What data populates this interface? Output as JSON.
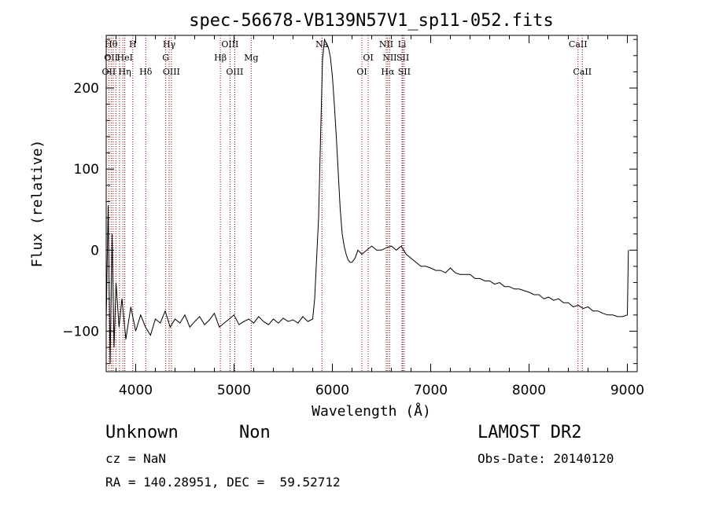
{
  "chart_data": {
    "type": "line",
    "title": "spec-56678-VB139N57V1_sp11-052.fits",
    "xlabel": "Wavelength (Å)",
    "ylabel": "Flux (relative)",
    "xlim": [
      3700,
      9100
    ],
    "ylim": [
      -150,
      265
    ],
    "x_ticks": [
      4000,
      5000,
      6000,
      7000,
      8000,
      9000
    ],
    "y_ticks": [
      -100,
      0,
      100,
      200
    ],
    "grid": false,
    "legend": "none",
    "line_color": "#000000",
    "marker_color": "#8b0000",
    "series": [
      {
        "x": [
          3700,
          3720,
          3740,
          3760,
          3780,
          3800,
          3830,
          3860,
          3900,
          3950,
          4000,
          4050,
          4100,
          4150,
          4200,
          4250,
          4300,
          4350,
          4400,
          4450,
          4500,
          4550,
          4600,
          4650,
          4700,
          4750,
          4800,
          4850,
          4900,
          4950,
          5000,
          5050,
          5100,
          5150,
          5200,
          5250,
          5300,
          5350,
          5400,
          5450,
          5500,
          5550,
          5600,
          5650,
          5700,
          5750,
          5800,
          5820,
          5840,
          5860,
          5880,
          5900,
          5920,
          5940,
          5960,
          5980,
          6000,
          6020,
          6040,
          6060,
          6080,
          6100,
          6120,
          6140,
          6160,
          6180,
          6200,
          6230,
          6260,
          6300,
          6350,
          6400,
          6450,
          6500,
          6550,
          6600,
          6650,
          6700,
          6750,
          6800,
          6850,
          6900,
          6950,
          7000,
          7050,
          7100,
          7150,
          7200,
          7250,
          7300,
          7350,
          7400,
          7450,
          7500,
          7550,
          7600,
          7650,
          7700,
          7750,
          7800,
          7850,
          7900,
          7950,
          8000,
          8050,
          8100,
          8150,
          8200,
          8250,
          8300,
          8350,
          8400,
          8450,
          8500,
          8550,
          8600,
          8650,
          8700,
          8750,
          8800,
          8850,
          8900,
          8950,
          9000,
          9010
        ],
        "y": [
          -90,
          55,
          -140,
          20,
          -120,
          -40,
          -95,
          -60,
          -110,
          -70,
          -100,
          -80,
          -95,
          -105,
          -85,
          -90,
          -75,
          -95,
          -85,
          -90,
          -80,
          -95,
          -88,
          -82,
          -92,
          -86,
          -78,
          -95,
          -90,
          -85,
          -80,
          -92,
          -88,
          -85,
          -90,
          -82,
          -88,
          -92,
          -85,
          -90,
          -84,
          -88,
          -86,
          -90,
          -82,
          -88,
          -85,
          -60,
          -10,
          40,
          140,
          235,
          260,
          255,
          250,
          238,
          215,
          180,
          140,
          95,
          50,
          20,
          5,
          -5,
          -12,
          -15,
          -15,
          -10,
          0,
          -5,
          0,
          5,
          0,
          0,
          3,
          5,
          0,
          5,
          -5,
          -10,
          -15,
          -20,
          -20,
          -22,
          -25,
          -25,
          -28,
          -22,
          -28,
          -30,
          -30,
          -30,
          -35,
          -35,
          -38,
          -38,
          -42,
          -40,
          -45,
          -45,
          -48,
          -48,
          -50,
          -52,
          -55,
          -55,
          -60,
          -58,
          -62,
          -60,
          -65,
          -65,
          -70,
          -68,
          -72,
          -70,
          -75,
          -75,
          -78,
          -80,
          -80,
          -82,
          -82,
          -80,
          0
        ]
      }
    ],
    "line_markers": [
      {
        "x": 3727,
        "labels": [
          {
            "text": "OII",
            "row": 2
          }
        ]
      },
      {
        "x": 3750,
        "labels": [
          {
            "text": "OII",
            "row": 1
          }
        ]
      },
      {
        "x": 3771,
        "labels": [
          {
            "text": "",
            "row": 0
          }
        ]
      },
      {
        "x": 3798,
        "labels": [
          {
            "text": "",
            "row": 0
          }
        ]
      },
      {
        "x": 3835,
        "labels": [
          {
            "text": "",
            "row": 0
          }
        ]
      },
      {
        "x": 3869,
        "labels": [
          {
            "text": "",
            "row": 0
          }
        ]
      },
      {
        "x": 3889,
        "labels": [
          {
            "text": "Hη",
            "row": 2
          }
        ]
      },
      {
        "x": 3970,
        "labels": [
          {
            "text": "H",
            "row": 0
          }
        ]
      },
      {
        "x": 4102,
        "labels": [
          {
            "text": "Hδ",
            "row": 2
          }
        ]
      },
      {
        "x": 4305,
        "labels": [
          {
            "text": "G",
            "row": 1
          }
        ]
      },
      {
        "x": 4340,
        "labels": [
          {
            "text": "Hγ",
            "row": 0
          }
        ]
      },
      {
        "x": 4363,
        "labels": [
          {
            "text": "OIII",
            "row": 2
          }
        ]
      },
      {
        "x": 4861,
        "labels": [
          {
            "text": "Hβ",
            "row": 1
          }
        ]
      },
      {
        "x": 4959,
        "labels": [
          {
            "text": "OIII",
            "row": 0
          }
        ]
      },
      {
        "x": 5007,
        "labels": [
          {
            "text": "OIII",
            "row": 2
          }
        ]
      },
      {
        "x": 5175,
        "labels": [
          {
            "text": "Mg",
            "row": 1
          }
        ]
      },
      {
        "x": 5894,
        "labels": [
          {
            "text": "Na",
            "row": 0
          }
        ]
      },
      {
        "x": 6300,
        "labels": [
          {
            "text": "OI",
            "row": 2
          }
        ]
      },
      {
        "x": 6364,
        "labels": [
          {
            "text": "OI",
            "row": 1
          }
        ]
      },
      {
        "x": 6548,
        "labels": [
          {
            "text": "NII",
            "row": 0
          }
        ]
      },
      {
        "x": 6563,
        "labels": [
          {
            "text": "Hα",
            "row": 2
          }
        ]
      },
      {
        "x": 6583,
        "labels": [
          {
            "text": "NII",
            "row": 1
          }
        ]
      },
      {
        "x": 6708,
        "labels": [
          {
            "text": "Li",
            "row": 0
          }
        ]
      },
      {
        "x": 6717,
        "labels": [
          {
            "text": "SII",
            "row": 1
          }
        ]
      },
      {
        "x": 6731,
        "labels": [
          {
            "text": "SII",
            "row": 2
          }
        ]
      },
      {
        "x": 8498,
        "labels": [
          {
            "text": "CaII",
            "row": 0
          }
        ]
      },
      {
        "x": 8542,
        "labels": [
          {
            "text": "CaII",
            "row": 2
          }
        ]
      }
    ],
    "extra_labels": [
      {
        "text": "Hθ",
        "near_x": 3750,
        "row": 0
      },
      {
        "text": "HeI",
        "near_x": 3890,
        "row": 1
      }
    ]
  },
  "info": {
    "object_class": "Unknown",
    "subclass": "Non",
    "survey": "LAMOST DR2",
    "redshift": "cz = NaN",
    "obs_date": "Obs-Date: 20140120",
    "coords": "RA = 140.28951, DEC =  59.52712"
  }
}
